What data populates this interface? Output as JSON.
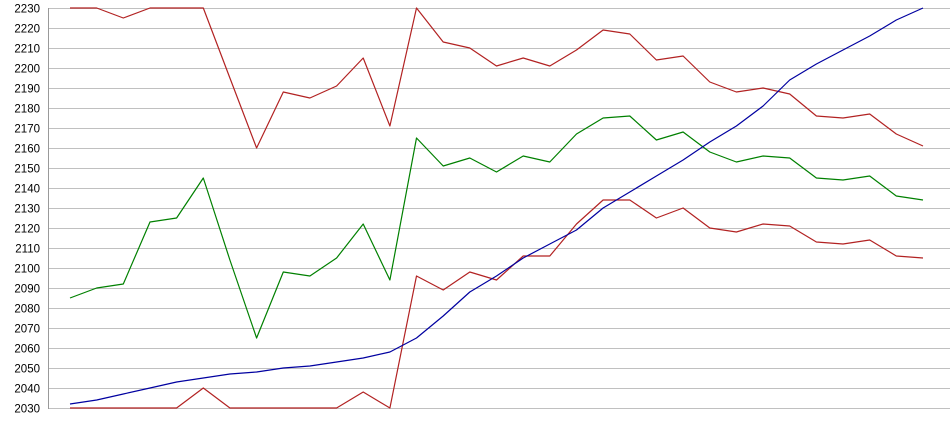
{
  "chart_data": {
    "type": "line",
    "title": "",
    "xlabel": "",
    "ylabel": "",
    "ylim": [
      2030,
      2230
    ],
    "ytick_step": 10,
    "ytick_labels": [
      "2230",
      "2220",
      "2210",
      "2200",
      "2190",
      "2180",
      "2170",
      "2160",
      "2150",
      "2140",
      "2130",
      "2120",
      "2110",
      "2100",
      "2090",
      "2080",
      "2070",
      "2060",
      "2050",
      "2040",
      "2030"
    ],
    "xtick_labels": [],
    "grid": true,
    "legend_position": "none",
    "point_count": 33,
    "grid_color": "#c0c0c0",
    "axis_color": "#999999",
    "label_color": "#000000",
    "series": [
      {
        "name": "upper-red-series",
        "color": "#b22222",
        "values": [
          2230,
          2230,
          2225,
          2230,
          2230,
          2230,
          2195,
          2160,
          2188,
          2185,
          2191,
          2205,
          2171,
          2230,
          2213,
          2210,
          2201,
          2205,
          2201,
          2209,
          2219,
          2217,
          2204,
          2206,
          2193,
          2188,
          2190,
          2187,
          2176,
          2175,
          2177,
          2167,
          2161
        ]
      },
      {
        "name": "green-series",
        "color": "#008000",
        "values": [
          2085,
          2090,
          2092,
          2123,
          2125,
          2145,
          2104,
          2065,
          2098,
          2096,
          2105,
          2122,
          2094,
          2165,
          2151,
          2155,
          2148,
          2156,
          2153,
          2167,
          2175,
          2176,
          2164,
          2168,
          2158,
          2153,
          2156,
          2155,
          2145,
          2144,
          2146,
          2136,
          2134
        ]
      },
      {
        "name": "lower-red-series",
        "color": "#b22222",
        "values": [
          2030,
          2030,
          2030,
          2030,
          2030,
          2040,
          2030,
          2030,
          2030,
          2030,
          2030,
          2038,
          2030,
          2096,
          2089,
          2098,
          2094,
          2106,
          2106,
          2122,
          2134,
          2134,
          2125,
          2130,
          2120,
          2118,
          2122,
          2121,
          2113,
          2112,
          2114,
          2106,
          2105
        ]
      },
      {
        "name": "blue-series",
        "color": "#0000a0",
        "values": [
          2032,
          2034,
          2037,
          2040,
          2043,
          2045,
          2047,
          2048,
          2050,
          2051,
          2053,
          2055,
          2058,
          2065,
          2076,
          2088,
          2096,
          2105,
          2112,
          2119,
          2130,
          2138,
          2146,
          2154,
          2163,
          2171,
          2181,
          2194,
          2202,
          2209,
          2216,
          2224,
          2230
        ]
      }
    ]
  }
}
